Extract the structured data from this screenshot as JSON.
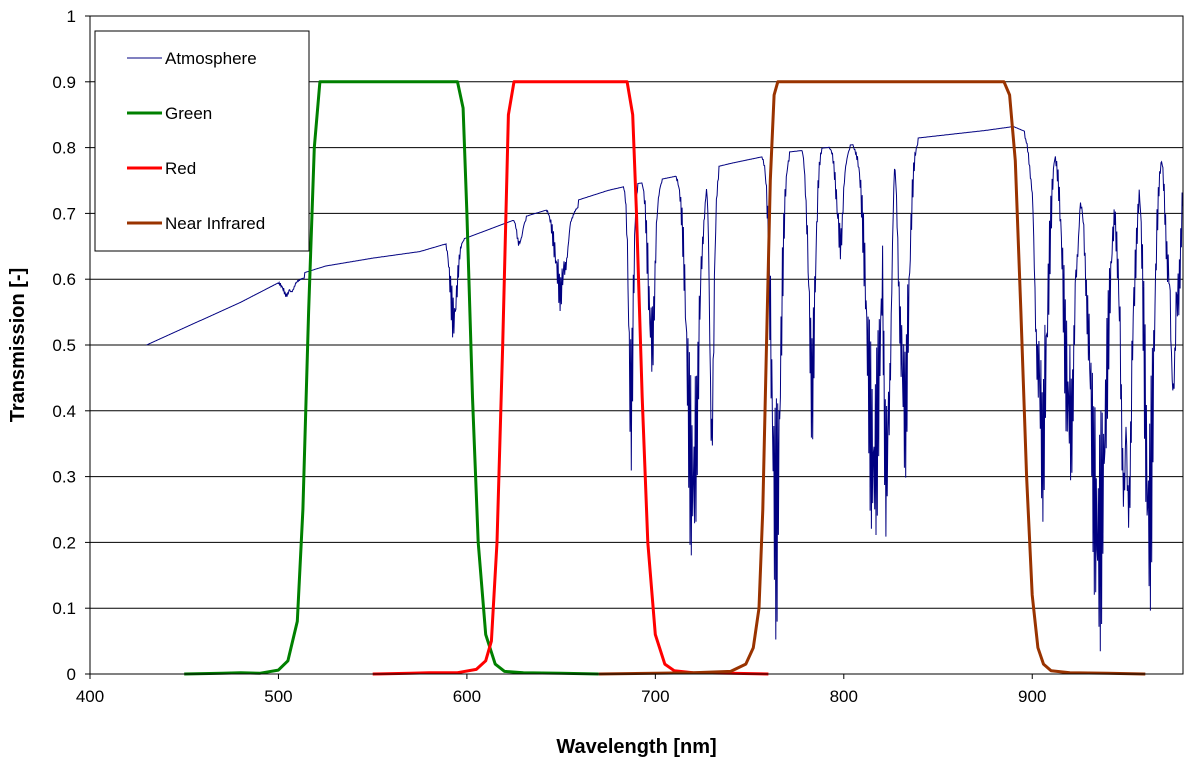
{
  "chart_data": {
    "type": "line",
    "title": "",
    "xlabel": "Wavelength [nm]",
    "ylabel": "Transmission  [-]",
    "xlim": [
      400,
      980
    ],
    "ylim": [
      0,
      1
    ],
    "xticks": [
      400,
      500,
      600,
      700,
      800,
      900
    ],
    "xtick_labels": [
      "400",
      "500",
      "600",
      "700",
      "800",
      "900"
    ],
    "yticks": [
      0,
      0.1,
      0.2,
      0.3,
      0.4,
      0.5,
      0.6,
      0.7,
      0.8,
      0.9,
      1
    ],
    "ytick_labels": [
      "0",
      "0.1",
      "0.2",
      "0.3",
      "0.4",
      "0.5",
      "0.6",
      "0.7",
      "0.8",
      "0.9",
      "1"
    ],
    "grid": "horizontal",
    "legend_position": "top-left",
    "series": [
      {
        "name": "Atmosphere",
        "color": "#000080",
        "x": [
          430,
          480,
          505,
          525,
          550,
          575,
          600,
          625,
          650,
          675,
          690,
          700,
          720,
          740,
          760,
          770,
          800,
          825,
          850,
          875,
          885,
          890,
          900,
          920,
          940,
          960,
          980
        ],
        "y": [
          0.5,
          0.565,
          0.602,
          0.62,
          0.632,
          0.642,
          0.663,
          0.69,
          0.712,
          0.735,
          0.745,
          0.75,
          0.762,
          0.776,
          0.788,
          0.793,
          0.803,
          0.81,
          0.818,
          0.826,
          0.83,
          0.832,
          0.82,
          0.79,
          0.76,
          0.77,
          0.82
        ],
        "absorption_bands": [
          {
            "x": [
              500,
              505,
              510
            ],
            "y": [
              0.602,
              0.565,
              0.602
            ]
          },
          {
            "x": [
              590,
              593,
              596
            ],
            "y": [
              0.66,
              0.5,
              0.66
            ]
          },
          {
            "x": [
              626,
              628,
              630
            ],
            "y": [
              0.69,
              0.63,
              0.69
            ]
          },
          {
            "x": [
              645,
              650,
              655
            ],
            "y": [
              0.71,
              0.53,
              0.71
            ]
          },
          {
            "x": [
              685,
              687,
              689
            ],
            "y": [
              0.74,
              0.28,
              0.74
            ]
          },
          {
            "x": [
              695,
              698,
              701
            ],
            "y": [
              0.75,
              0.4,
              0.75
            ]
          },
          {
            "x": [
              715,
              720,
              725
            ],
            "y": [
              0.76,
              0.1,
              0.76
            ]
          },
          {
            "x": [
              728,
              730,
              732
            ],
            "y": [
              0.76,
              0.22,
              0.76
            ]
          },
          {
            "x": [
              760,
              764,
              768
            ],
            "y": [
              0.79,
              0.045,
              0.79
            ]
          },
          {
            "x": [
              780,
              783,
              786
            ],
            "y": [
              0.8,
              0.3,
              0.8
            ]
          },
          {
            "x": [
              795,
              798,
              801
            ],
            "y": [
              0.8,
              0.6,
              0.8
            ]
          },
          {
            "x": [
              810,
              816,
              822
            ],
            "y": [
              0.805,
              0.15,
              0.805
            ]
          },
          {
            "x": [
              820,
              823,
              826
            ],
            "y": [
              0.81,
              0.04,
              0.81
            ]
          },
          {
            "x": [
              828,
              832,
              836
            ],
            "y": [
              0.81,
              0.22,
              0.81
            ]
          },
          {
            "x": [
              900,
              905,
              910
            ],
            "y": [
              0.82,
              0.15,
              0.82
            ]
          },
          {
            "x": [
              915,
              920,
              925
            ],
            "y": [
              0.8,
              0.2,
              0.8
            ]
          },
          {
            "x": [
              928,
              935,
              942
            ],
            "y": [
              0.76,
              0.0,
              0.76
            ]
          },
          {
            "x": [
              945,
              950,
              955
            ],
            "y": [
              0.77,
              0.0,
              0.77
            ]
          },
          {
            "x": [
              958,
              962,
              966
            ],
            "y": [
              0.79,
              0.05,
              0.79
            ]
          },
          {
            "x": [
              970,
              975,
              980
            ],
            "y": [
              0.82,
              0.3,
              0.82
            ]
          }
        ]
      },
      {
        "name": "Green",
        "color": "#008000",
        "x": [
          450,
          470,
          480,
          490,
          500,
          505,
          510,
          513,
          516,
          519,
          522,
          525,
          595,
          598,
          600,
          603,
          606,
          610,
          615,
          620,
          630,
          650,
          670
        ],
        "y": [
          0,
          0.001,
          0.002,
          0.001,
          0.006,
          0.02,
          0.08,
          0.25,
          0.55,
          0.8,
          0.9,
          0.9,
          0.9,
          0.86,
          0.7,
          0.42,
          0.2,
          0.06,
          0.015,
          0.004,
          0.002,
          0.001,
          0
        ]
      },
      {
        "name": "Red",
        "color": "#ff0000",
        "x": [
          550,
          570,
          580,
          595,
          605,
          610,
          613,
          616,
          619,
          622,
          625,
          685,
          688,
          690,
          693,
          696,
          700,
          705,
          710,
          720,
          740,
          760
        ],
        "y": [
          0,
          0.001,
          0.002,
          0.002,
          0.007,
          0.02,
          0.05,
          0.2,
          0.5,
          0.85,
          0.9,
          0.9,
          0.85,
          0.7,
          0.42,
          0.2,
          0.06,
          0.015,
          0.005,
          0.002,
          0.001,
          0
        ]
      },
      {
        "name": "Near Infrared",
        "color": "#993300",
        "x": [
          670,
          700,
          720,
          740,
          748,
          752,
          755,
          757,
          759,
          761,
          763,
          765,
          885,
          888,
          891,
          894,
          897,
          900,
          903,
          906,
          910,
          920,
          940,
          960
        ],
        "y": [
          0,
          0.001,
          0.002,
          0.004,
          0.015,
          0.04,
          0.1,
          0.25,
          0.5,
          0.75,
          0.88,
          0.9,
          0.9,
          0.88,
          0.78,
          0.55,
          0.3,
          0.12,
          0.04,
          0.015,
          0.005,
          0.002,
          0.001,
          0
        ]
      }
    ]
  }
}
